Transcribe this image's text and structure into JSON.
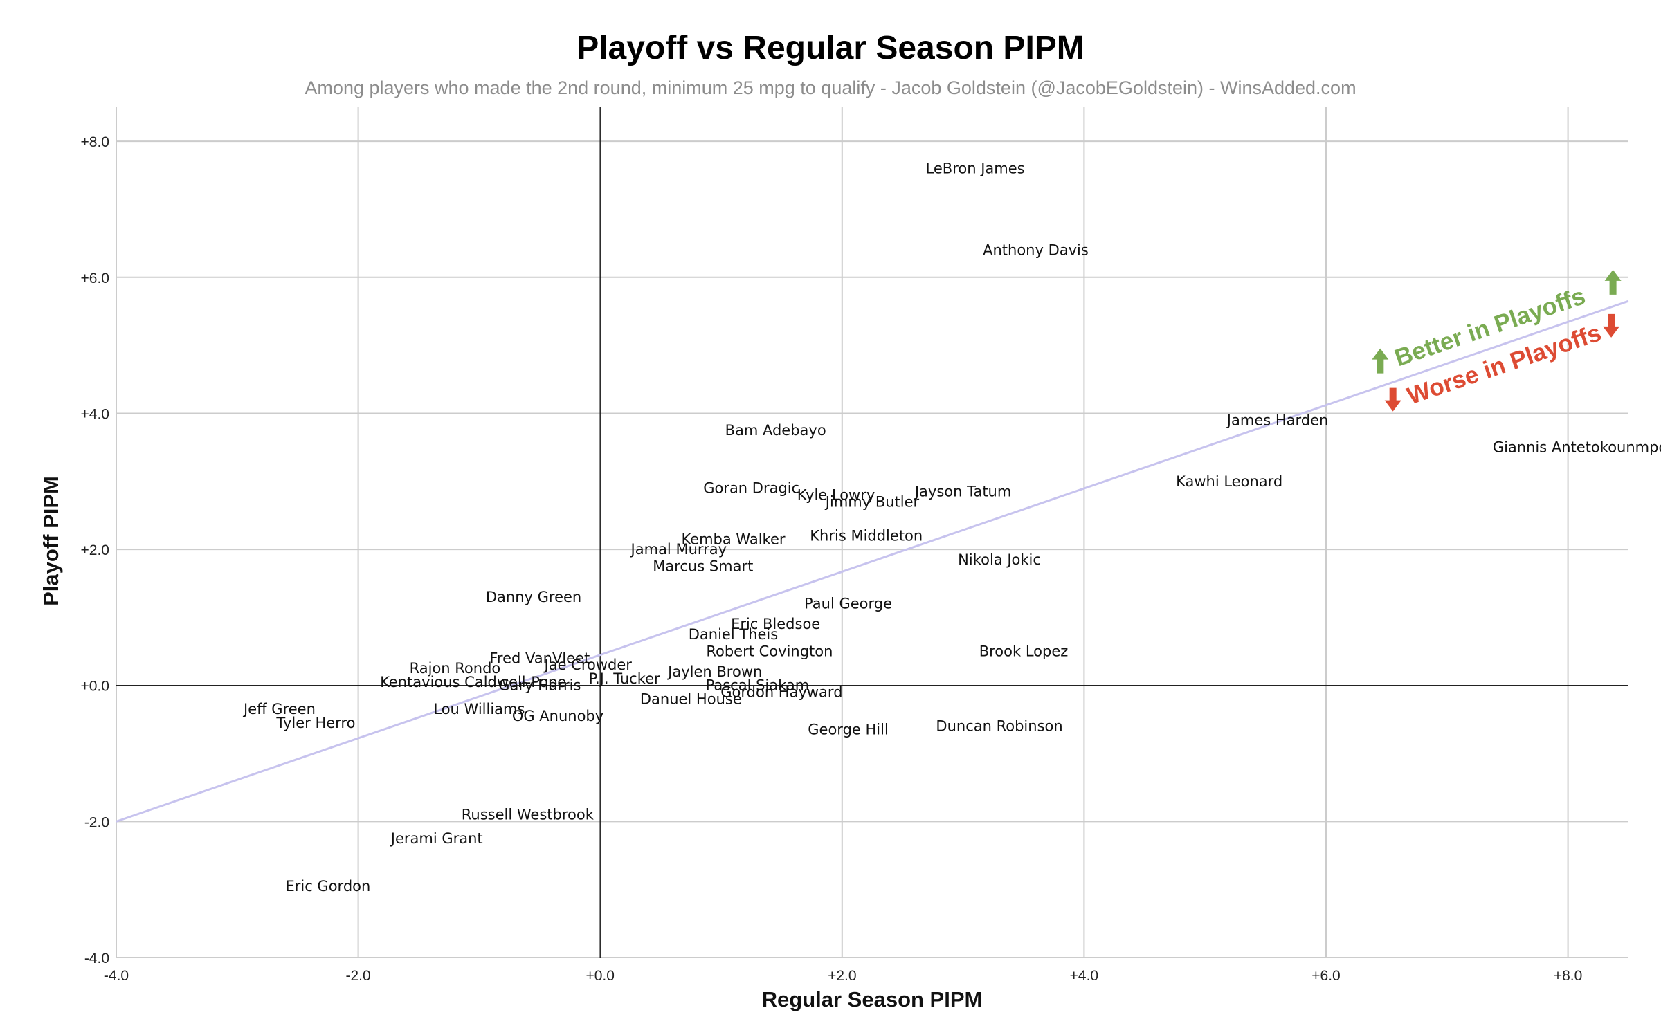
{
  "chart_data": {
    "type": "scatter",
    "title": "Playoff vs Regular Season PIPM",
    "subtitle": "Among players who made the 2nd round, minimum 25 mpg to qualify - Jacob Goldstein (@JacobEGoldstein) - WinsAdded.com",
    "xlabel": "Regular Season PIPM",
    "ylabel": "Playoff PIPM",
    "xlim": [
      -4.0,
      8.5
    ],
    "ylim": [
      -4.0,
      8.5
    ],
    "xticks": [
      "-4.0",
      "-2.0",
      "+0.0",
      "+2.0",
      "+4.0",
      "+6.0",
      "+8.0"
    ],
    "yticks": [
      "-4.0",
      "-2.0",
      "+0.0",
      "+2.0",
      "+4.0",
      "+6.0",
      "+8.0"
    ],
    "grid": true,
    "reference_line": {
      "x": [
        -4.0,
        8.5
      ],
      "y": [
        -2.0,
        5.65
      ],
      "color": "#c7c3ee"
    },
    "annotations": [
      {
        "text": "Better in Playoffs",
        "color": "#7aab52"
      },
      {
        "text": "Worse in Playoffs",
        "color": "#dd4b33"
      }
    ],
    "points": [
      {
        "name": "LeBron James",
        "x": 3.1,
        "y": 7.6
      },
      {
        "name": "Anthony Davis",
        "x": 3.6,
        "y": 6.4
      },
      {
        "name": "James Harden",
        "x": 5.6,
        "y": 3.9
      },
      {
        "name": "Giannis Antetokounmpo",
        "x": 8.1,
        "y": 3.5
      },
      {
        "name": "Kawhi Leonard",
        "x": 5.2,
        "y": 3.0
      },
      {
        "name": "Bam Adebayo",
        "x": 1.45,
        "y": 3.75
      },
      {
        "name": "Goran Dragic",
        "x": 1.25,
        "y": 2.9
      },
      {
        "name": "Kyle Lowry",
        "x": 1.95,
        "y": 2.8
      },
      {
        "name": "Jimmy Butler",
        "x": 2.25,
        "y": 2.7
      },
      {
        "name": "Jayson Tatum",
        "x": 3.0,
        "y": 2.85
      },
      {
        "name": "Kemba Walker",
        "x": 1.1,
        "y": 2.15
      },
      {
        "name": "Khris Middleton",
        "x": 2.2,
        "y": 2.2
      },
      {
        "name": "Jamal Murray",
        "x": 0.65,
        "y": 2.0
      },
      {
        "name": "Marcus Smart",
        "x": 0.85,
        "y": 1.75
      },
      {
        "name": "Nikola Jokic",
        "x": 3.3,
        "y": 1.85
      },
      {
        "name": "Danny Green",
        "x": -0.55,
        "y": 1.3
      },
      {
        "name": "Paul George",
        "x": 2.05,
        "y": 1.2
      },
      {
        "name": "Eric Bledsoe",
        "x": 1.45,
        "y": 0.9
      },
      {
        "name": "Daniel Theis",
        "x": 1.1,
        "y": 0.75
      },
      {
        "name": "Robert Covington",
        "x": 1.4,
        "y": 0.5
      },
      {
        "name": "Brook Lopez",
        "x": 3.5,
        "y": 0.5
      },
      {
        "name": "Fred VanVleet",
        "x": -0.5,
        "y": 0.4
      },
      {
        "name": "Jae Crowder",
        "x": -0.1,
        "y": 0.3
      },
      {
        "name": "Rajon Rondo",
        "x": -1.2,
        "y": 0.25
      },
      {
        "name": "Jaylen Brown",
        "x": 0.95,
        "y": 0.2
      },
      {
        "name": "P.J. Tucker",
        "x": 0.2,
        "y": 0.1
      },
      {
        "name": "Kentavious Caldwell-Pope",
        "x": -1.05,
        "y": 0.05
      },
      {
        "name": "Gary Harris",
        "x": -0.5,
        "y": 0.0
      },
      {
        "name": "Pascal Siakam",
        "x": 1.3,
        "y": 0.0
      },
      {
        "name": "Gordon Hayward",
        "x": 1.5,
        "y": -0.1
      },
      {
        "name": "Danuel House",
        "x": 0.75,
        "y": -0.2
      },
      {
        "name": "Jeff Green",
        "x": -2.65,
        "y": -0.35
      },
      {
        "name": "Lou Williams",
        "x": -1.0,
        "y": -0.35
      },
      {
        "name": "OG Anunoby",
        "x": -0.35,
        "y": -0.45
      },
      {
        "name": "Tyler Herro",
        "x": -2.35,
        "y": -0.55
      },
      {
        "name": "George Hill",
        "x": 2.05,
        "y": -0.65
      },
      {
        "name": "Duncan Robinson",
        "x": 3.3,
        "y": -0.6
      },
      {
        "name": "Russell Westbrook",
        "x": -0.6,
        "y": -1.9
      },
      {
        "name": "Jerami Grant",
        "x": -1.35,
        "y": -2.25
      },
      {
        "name": "Eric Gordon",
        "x": -2.25,
        "y": -2.95
      }
    ]
  }
}
